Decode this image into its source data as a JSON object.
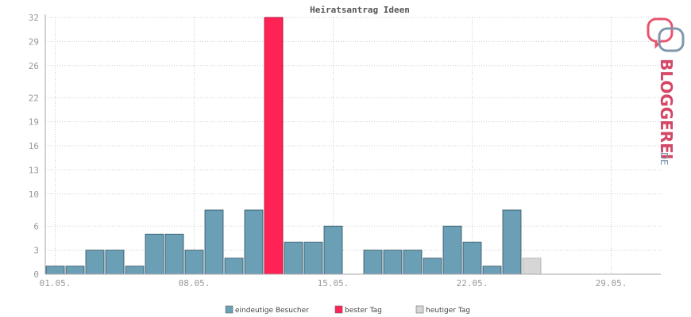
{
  "chart_data": {
    "type": "bar",
    "title": "Heiratsantrag Ideen",
    "xlabel": "",
    "ylabel": "",
    "ylim": [
      0,
      32
    ],
    "yticks": [
      0,
      3,
      6,
      10,
      13,
      16,
      19,
      22,
      26,
      29,
      32
    ],
    "x_tick_labels": [
      {
        "day": 1,
        "label": "01.05."
      },
      {
        "day": 8,
        "label": "08.05."
      },
      {
        "day": 15,
        "label": "15.05."
      },
      {
        "day": 22,
        "label": "22.05."
      },
      {
        "day": 29,
        "label": "29.05."
      }
    ],
    "days": [
      1,
      2,
      3,
      4,
      5,
      6,
      7,
      8,
      9,
      10,
      11,
      12,
      13,
      14,
      15,
      16,
      17,
      18,
      19,
      20,
      21,
      22,
      23,
      24,
      25,
      26,
      27,
      28,
      29,
      30,
      31
    ],
    "values": [
      1,
      1,
      3,
      3,
      1,
      5,
      5,
      3,
      8,
      2,
      8,
      32,
      4,
      4,
      6,
      0,
      3,
      3,
      3,
      2,
      6,
      4,
      1,
      8,
      2,
      0,
      0,
      0,
      0,
      0,
      0
    ],
    "kinds": [
      "normal",
      "normal",
      "normal",
      "normal",
      "normal",
      "normal",
      "normal",
      "normal",
      "normal",
      "normal",
      "normal",
      "best",
      "normal",
      "normal",
      "normal",
      "normal",
      "normal",
      "normal",
      "normal",
      "normal",
      "normal",
      "normal",
      "normal",
      "normal",
      "today",
      "normal",
      "normal",
      "normal",
      "normal",
      "normal",
      "normal"
    ],
    "grid": true,
    "legend_position": "bottom",
    "legend": [
      {
        "key": "normal",
        "label": "eindeutige Besucher",
        "color": "#6a9fb5"
      },
      {
        "key": "best",
        "label": "bester Tag",
        "color": "#ff2255"
      },
      {
        "key": "today",
        "label": "heutiger Tag",
        "color": "#d6d6d6"
      }
    ]
  },
  "colors": {
    "bar": "#6a9fb5",
    "bar_stroke": "#2f4f5f",
    "best": "#ff2255",
    "best_stroke": "#a0102e",
    "today": "#d6d6d6",
    "today_stroke": "#aaaaaa",
    "grid": "#cccccc",
    "axis": "#aaaaaa"
  },
  "brand": {
    "name_main": "BLOGGEREI",
    "name_suffix": ".DE",
    "icon": "bloggerei-logo-icon"
  }
}
